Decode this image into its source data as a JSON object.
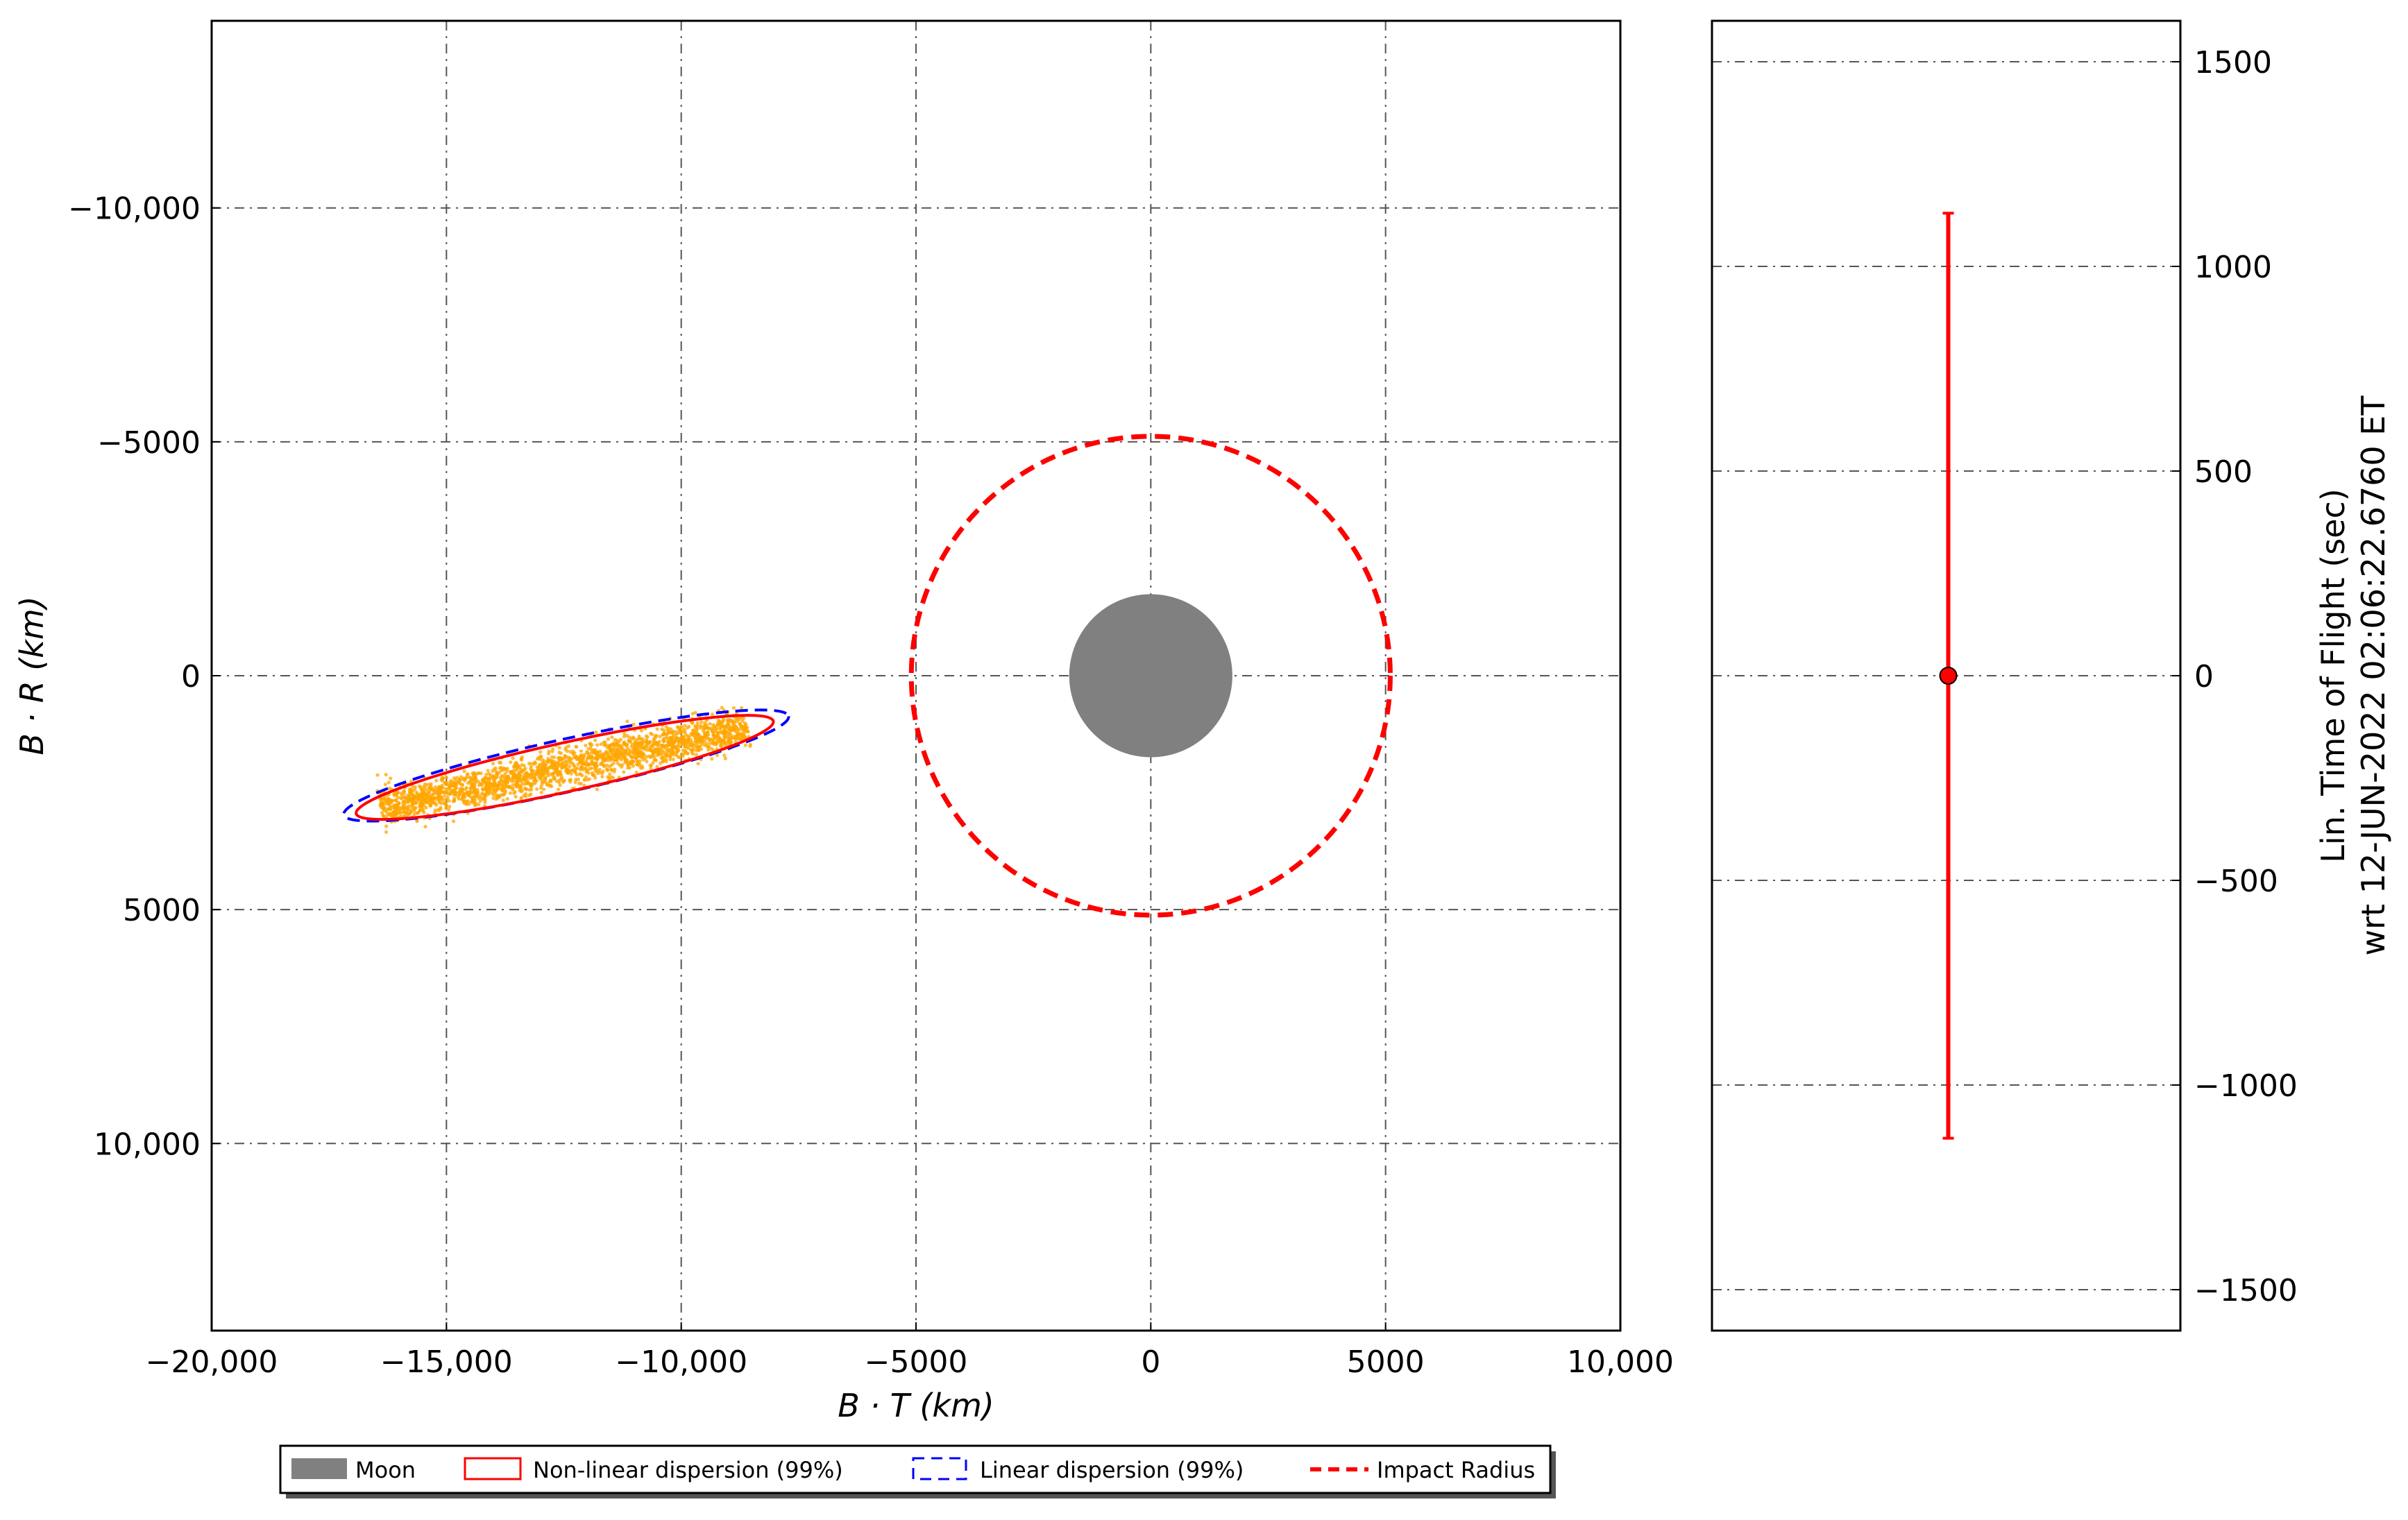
{
  "chart_data": [
    {
      "type": "scatter",
      "xlabel": "B · T (km)",
      "ylabel": "B · R (km)",
      "xlim": [
        -20000,
        10000
      ],
      "ylim": [
        -14000,
        14000
      ],
      "y_inverted": true,
      "grid": true,
      "x_ticks": [
        -20000,
        -15000,
        -10000,
        -5000,
        0,
        5000,
        10000
      ],
      "x_tick_labels": [
        "−20,000",
        "−15,000",
        "−10,000",
        "−5000",
        "0",
        "5000",
        "10,000"
      ],
      "y_ticks": [
        -10000,
        -5000,
        0,
        5000,
        10000
      ],
      "y_tick_labels": [
        "−10,000",
        "−5000",
        "0",
        "5000",
        "10,000"
      ],
      "moon": {
        "center": [
          0,
          0
        ],
        "radius": 1737,
        "color": "#808080"
      },
      "impact_radius": {
        "center": [
          0,
          0
        ],
        "radius": 5100,
        "color": "#ff0000"
      },
      "nonlinear_dispersion": {
        "center": [
          -12480,
          1960
        ],
        "semi_major": 4550,
        "semi_minor": 520,
        "angle_deg": -12.5,
        "color": "#ff0000"
      },
      "linear_dispersion": {
        "center": [
          -12450,
          1920
        ],
        "semi_major": 4850,
        "semi_minor": 560,
        "angle_deg": -12.5,
        "color": "#0000ff"
      },
      "monte_carlo_samples": {
        "color": "#ffa500",
        "count_drawn": 2200,
        "center": [
          -12500,
          1950
        ],
        "spread_along": 4000,
        "spread_across": 330,
        "angle_deg": -12.5
      }
    },
    {
      "type": "errorbar",
      "ylabel_lines": [
        "Lin. Time of Flight (sec)",
        "wrt 12-JUN-2022 02:06:22.6760 ET"
      ],
      "ylim": [
        -1600,
        1600
      ],
      "y_ticks": [
        -1500,
        -1000,
        -500,
        0,
        500,
        1000,
        1500
      ],
      "y_tick_labels": [
        "−1500",
        "−1000",
        "−500",
        "0",
        "500",
        "1000",
        "1500"
      ],
      "y_axis_side": "right",
      "grid": true,
      "point": {
        "value": 0,
        "lower": -1130,
        "upper": 1130,
        "color": "#ff0000"
      }
    }
  ],
  "legend": {
    "placement": "bottom-center",
    "entries": [
      {
        "label": "Moon",
        "style": "gray-patch"
      },
      {
        "label": "Non-linear dispersion (99%)",
        "style": "red-outline"
      },
      {
        "label": "Linear dispersion (99%)",
        "style": "blue-dashed-outline"
      },
      {
        "label": "Impact Radius",
        "style": "red-dashed-line"
      }
    ]
  }
}
